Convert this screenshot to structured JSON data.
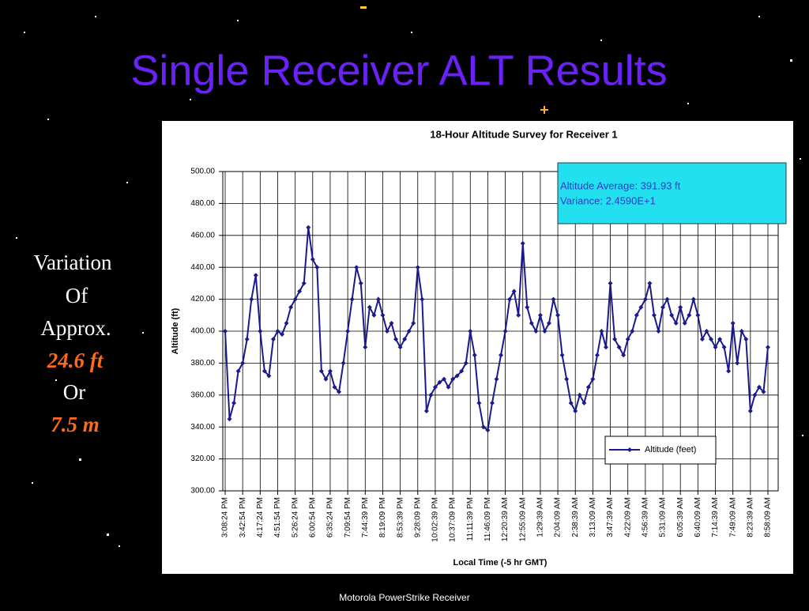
{
  "slide": {
    "title": "Single Receiver ALT Results",
    "side_text": [
      "Variation",
      "Of",
      "Approx.",
      "24.6 ft",
      "Or",
      "7.5 m"
    ],
    "footer": "Motorola PowerStrike Receiver"
  },
  "chart_data": {
    "type": "line",
    "title": "18-Hour Altitude Survey for Receiver 1",
    "x_label": "Local Time (-5 hr GMT)",
    "y_label": "Altitude (ft)",
    "categories": [
      "3:08:24 PM",
      null,
      null,
      null,
      "3:42:54 PM",
      null,
      null,
      null,
      "4:17:24 PM",
      null,
      null,
      null,
      "4:51:54 PM",
      null,
      null,
      null,
      "5:26:24 PM",
      null,
      null,
      null,
      "6:00:54 PM",
      null,
      null,
      null,
      "6:35:24 PM",
      null,
      null,
      null,
      "7:09:54 PM",
      null,
      null,
      null,
      "7:44:39 PM",
      null,
      null,
      null,
      "8:19:09 PM",
      null,
      null,
      null,
      "8:53:39 PM",
      null,
      null,
      null,
      "9:28:09 PM",
      null,
      null,
      null,
      "10:02:39 PM",
      null,
      null,
      null,
      "10:37:09 PM",
      null,
      null,
      null,
      "11:11:39 PM",
      null,
      null,
      null,
      "11:46:09 PM",
      null,
      null,
      null,
      "12:20:39 AM",
      null,
      null,
      null,
      "12:55:09 AM",
      null,
      null,
      null,
      "1:29:39 AM",
      null,
      null,
      null,
      "2:04:09 AM",
      null,
      null,
      null,
      "2:38:39 AM",
      null,
      null,
      null,
      "3:13:09 AM",
      null,
      null,
      null,
      "3:47:39 AM",
      null,
      null,
      null,
      "4:22:09 AM",
      null,
      null,
      null,
      "4:56:39 AM",
      null,
      null,
      null,
      "5:31:09 AM",
      null,
      null,
      null,
      "6:05:39 AM",
      null,
      null,
      null,
      "6:40:09 AM",
      null,
      null,
      null,
      "7:14:39 AM",
      null,
      null,
      null,
      "7:49:09 AM",
      null,
      null,
      null,
      "8:23:39 AM",
      null,
      null,
      null,
      "8:58:09 AM"
    ],
    "series": [
      {
        "name": "Altitude (feet)",
        "color": "#1a1a8c",
        "values": [
          400,
          345,
          355,
          375,
          380,
          395,
          420,
          435,
          400,
          375,
          372,
          395,
          400,
          398,
          405,
          415,
          420,
          425,
          430,
          465,
          445,
          440,
          375,
          370,
          375,
          365,
          362,
          380,
          400,
          420,
          440,
          430,
          390,
          415,
          410,
          420,
          410,
          400,
          405,
          395,
          390,
          395,
          400,
          405,
          440,
          420,
          350,
          360,
          365,
          368,
          370,
          365,
          370,
          372,
          375,
          380,
          400,
          385,
          355,
          340,
          338,
          355,
          370,
          385,
          400,
          420,
          425,
          410,
          455,
          415,
          405,
          400,
          410,
          400,
          405,
          420,
          410,
          385,
          370,
          355,
          350,
          360,
          355,
          365,
          370,
          385,
          400,
          390,
          430,
          395,
          390,
          385,
          395,
          400,
          410,
          415,
          420,
          430,
          410,
          400,
          415,
          420,
          410,
          405,
          415,
          405,
          410,
          420,
          410,
          395,
          400,
          395,
          390,
          395,
          390,
          375,
          405,
          380,
          400,
          395,
          350,
          360,
          365,
          362,
          390
        ]
      }
    ],
    "ylim": [
      300,
      500
    ],
    "yticks": [
      {
        "value": 300,
        "label": "300.00"
      },
      {
        "value": 320,
        "label": "320.00"
      },
      {
        "value": 340,
        "label": "340.00"
      },
      {
        "value": 360,
        "label": "360.00"
      },
      {
        "value": 380,
        "label": "380.00"
      },
      {
        "value": 400,
        "label": "400.00"
      },
      {
        "value": 420,
        "label": "420.00"
      },
      {
        "value": 440,
        "label": "440.00"
      },
      {
        "value": 460,
        "label": "460.00"
      },
      {
        "value": 480,
        "label": "480.00"
      },
      {
        "value": 500,
        "label": "500.00"
      }
    ],
    "grid": true,
    "annotations": [
      "Altitude Average: 391.93 ft",
      "Variance: 2.4590E+1"
    ],
    "legend": "lower right"
  }
}
